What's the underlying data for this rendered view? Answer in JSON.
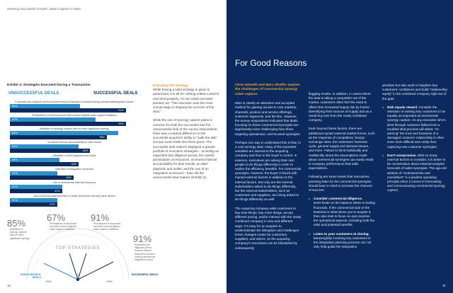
{
  "running_head": "Steering Successful Growth: Value Capture in M&A",
  "page_numbers": {
    "left": "10",
    "right": "11"
  },
  "exhibit": {
    "title": "Exhibit 3: Strategies Executed During a Transaction",
    "unsuccessful_label": "UNSUCCESSFUL DEALS",
    "successful_label": "SUCCESSFUL DEALS",
    "rows": [
      {
        "label": "Expanded due diligence period focused beyond financial to forward-looking operational/integration issues",
        "unsuccessful": "55%",
        "successful": "91%",
        "u": 55,
        "s": 91
      },
      {
        "label": "Prioritization of resources and effort around highest value capture initiatives",
        "unsuccessful": "67%",
        "successful": "91%",
        "u": 67,
        "s": 91
      },
      {
        "label": "Utilization of synergy capture plan for each significant synergy",
        "unsuccessful": "85%",
        "successful": "76%",
        "u": 85,
        "s": 76
      },
      {
        "label": "Increased internal accountability for deal results",
        "unsuccessful": "54%",
        "successful": "63%",
        "u": 54,
        "s": 63
      },
      {
        "label": "Utilization of M&A playbook and toolkit",
        "unsuccessful": "39%",
        "successful": "54%",
        "u": 39,
        "s": 54
      },
      {
        "label": "Utilization of integration scorecard",
        "unsuccessful": "37%",
        "successful": "50%",
        "u": 37,
        "s": 50
      },
      {
        "label": "Use of incremental external resources",
        "unsuccessful": "41%",
        "successful": "41%",
        "u": 41,
        "s": 41
      },
      {
        "label": "Use of succinct deal summary to clarify deal thesis and key value drivers",
        "unsuccessful": "37%",
        "successful": "37%",
        "u": 37,
        "s": 37
      }
    ]
  },
  "gauge": {
    "title": "TOP STRATEGIES",
    "left_end": "UNSUCCESSFUL DEALS",
    "right_end": "SUCCESSFUL DEALS",
    "left_pct": "100%",
    "right_pct": "100%",
    "zero": "0%",
    "stats": [
      {
        "value": "67%",
        "desc": "Prioritization of resources and effort around highest value capture initiatives"
      },
      {
        "value": "91%",
        "desc": "Prioritization of resources and effort around highest value capture initiatives"
      },
      {
        "value": "85%",
        "desc": "Utilization of synergy capture plan for each significant synergy"
      },
      {
        "value": "91%",
        "desc": "Expanded due diligence period focused beyond financial to forward-looking operational/ integration issues"
      }
    ]
  },
  "left_text": {
    "col1_lead": "Executing the Strategy",
    "col1_p1": "While having a solid strategy in place is paramount, it is all for nothing unless a deal is executed properly. As one retail executive pointed out, \"The execution was the most crucial stage in shaping the success of the deal.\"",
    "col1_p2": "While the use of synergy capture plans is common for both the successful and the unsuccessful side of the survey respondents, there was a marked difference in the successful acquirers' ability to \"walk the talk\" and put some teeth into these plans. The successful deal makers displayed a greater portfolio of execution strategies – including an expanded due diligence period, the careful prioritization of resources, increased internal accountability for deal results, an M&A playbook and toolkit, and the use of an integration scorecard – than did the unsuccessful deal makers (Exhibit 3)."
  },
  "right": {
    "title": "For Good Reasons",
    "intro": "Chris Nemeth and Marc Shaffer explore the challenges of commercial synergy value capture.",
    "c1_p1": "M&A is clearly an attractive and accepted method for gaining access to new markets, channels, product and service offerings, customer segments, and the like. However, the survey respondents indicated that deals focusing on these commercial synergies are significantly more challenging than those targeting operational, cost-focused synergies.",
    "c1_p2": "Perhaps one way to understand this is that, in a cost synergy deal, many of the important variables are internal to the acquiring company and thus in the buyer's control. In essence, executives are asking their own people to do things differently in order to realize the efficiency benefits. For commercial synergies, however, the buyer is faced with myriad external factors in addition to the internal factors. Not only are the internal stakeholders asked to do things differently, but the external stakeholders, such as customers and suppliers, are being asked to do things differently as well.",
    "c1_p3": "The acquiring company asks customers to buy new things, buy more things, accept different pricing, and/or interact with the newly combined company in new and different ways. It's easy for an acquirer to underestimate the disruption and challenges these changes create for customers, suppliers, and others, so the acquiring company's executives can be blindsided by subsequently",
    "c2_p1": "flagging results. In addition, in cases where the deal is taking a competitor out of the market, customers often feel the need to offset their increased supply risk by further diversifying their sources of supply and as a result buy less from the newly combined company.",
    "c2_p2": "Even beyond these factors, there are additional myriad external market forces, such as the response of competitors, foreign exchange rates, the customers' business cycle, general supply and demand issues, and more. Failure to think holistically and realistically about the assumptions made about commercial synergies can easily result in company performance that trails expectations.",
    "c2_p3": "Following are some tenets that executives pursuing M&A for the commercial synergies should bear in mind to increase the chances of success.",
    "b1_lead": "Consider commercial diligence.",
    "b1_text": "Don't fixate on the balance sheet or trailing financials. If the commercial side of the business is what drove you to acquire it, then also look to focus on and examine the operational aspects, including both the risks and potential benefits.",
    "b2_lead": "Listen to your customers at closing.",
    "b2_text": "Meaningfully involving key customers in the integration planning process can not only help guide the integration",
    "c3_p1": "priorities but also work to heighten key customers' confidence and build \"relationship equity\" in the combined company right out of the gate.",
    "b3_lead": "Risk equals reward.",
    "b3_text": "Consider the retention of existing key customers to be equally as important as incremental synergy capture. As any executive who's lived through customer fallout from a troubled deal process will attest, \"re-earning\" the trust and business of a damaged customer relationship is often even more difficult and costly than capturing new customer synergies.",
    "b4_lead": "Don't overpromise.",
    "b4_text": "With so many external factors to consider, it is better to be conservative about external analysts' forecasts of sales synergies. The age-old wisdom of \"underpromise and overdeliver\" is a prudent operating principle when it comes to forecasting and communicating commercial synergy capture."
  },
  "colors": {
    "navy": "#0b2a5e",
    "light_blue": "#2f8fc7",
    "orange": "#e69b2e"
  }
}
